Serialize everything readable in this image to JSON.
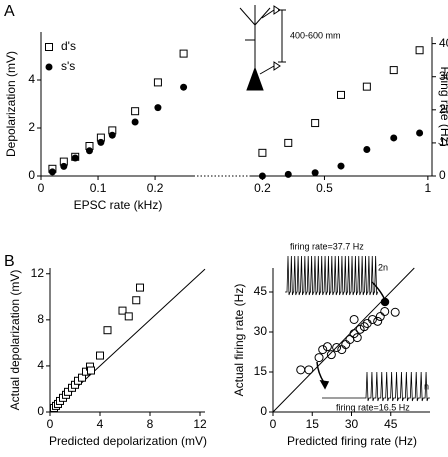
{
  "panel_labels": [
    "A",
    "B"
  ],
  "diagram": {
    "distance_label": "400-600 mm"
  },
  "traces": {
    "top_label": "firing rate=37.7 Hz",
    "top_tag": "2n",
    "bottom_label": "firing rate=16.5 Hz",
    "bottom_tag": "n"
  },
  "chart_data": [
    {
      "type": "scatter",
      "x_label": "EPSC rate (kHz)",
      "y_label": "Depolarization (mV)",
      "xlim": [
        0,
        0.27
      ],
      "ylim": [
        0,
        6
      ],
      "xticks": [
        0,
        0.1,
        0.2
      ],
      "yticks": [
        0,
        2,
        4
      ],
      "legend": "upper left",
      "series": [
        {
          "name": "d's",
          "marker": "open-square",
          "color": "#000000",
          "x": [
            0.02,
            0.04,
            0.06,
            0.085,
            0.105,
            0.125,
            0.165,
            0.205,
            0.25
          ],
          "values": [
            0.3,
            0.6,
            0.8,
            1.25,
            1.6,
            1.9,
            2.7,
            3.9,
            5.1
          ]
        },
        {
          "name": "s's",
          "marker": "filled-circle",
          "color": "#000000",
          "x": [
            0.02,
            0.04,
            0.06,
            0.085,
            0.105,
            0.125,
            0.165,
            0.205,
            0.25
          ],
          "values": [
            0.17,
            0.4,
            0.75,
            1.05,
            1.4,
            1.7,
            2.25,
            2.85,
            3.7
          ]
        }
      ]
    },
    {
      "type": "scatter",
      "y_label": "Firing rate (Hz)",
      "y_axis_side": "right",
      "xlim": [
        0.14,
        1.02
      ],
      "ylim": [
        0,
        42
      ],
      "xticks": [
        0.2,
        0.5,
        1
      ],
      "yticks": [
        0,
        10,
        20,
        30,
        40
      ],
      "series": [
        {
          "marker": "open-square",
          "color": "#000000",
          "x": [
            0.2,
            0.325,
            0.455,
            0.58,
            0.705,
            0.835,
            0.96
          ],
          "values": [
            7,
            10,
            16,
            24.5,
            27,
            32,
            38
          ]
        },
        {
          "marker": "filled-circle",
          "color": "#000000",
          "x": [
            0.2,
            0.325,
            0.455,
            0.58,
            0.705,
            0.835,
            0.96
          ],
          "values": [
            0,
            0.5,
            1,
            3,
            8,
            11.5,
            13
          ]
        }
      ]
    },
    {
      "type": "scatter",
      "x_label": "Predicted depolarization (mV)",
      "y_label": "Actual depolarization (mV)",
      "xlim": [
        0,
        12.4
      ],
      "ylim": [
        0,
        12.5
      ],
      "xticks": [
        0,
        4,
        8,
        12
      ],
      "yticks": [
        0,
        4,
        8,
        12
      ],
      "diagonal": true,
      "series": [
        {
          "marker": "open-square",
          "color": "#000000",
          "x": [
            0.32,
            0.48,
            0.64,
            0.8,
            1.04,
            1.28,
            1.44,
            1.76,
            2.0,
            2.24,
            2.56,
            2.88,
            3.2,
            3.28,
            4.0,
            4.6,
            5.8,
            6.3,
            6.9,
            7.2
          ],
          "values": [
            0.35,
            0.53,
            0.7,
            0.96,
            1.23,
            1.49,
            1.75,
            2.1,
            2.36,
            2.71,
            2.98,
            3.5,
            3.94,
            3.6,
            4.9,
            7.1,
            8.8,
            8.3,
            9.7,
            10.8
          ]
        }
      ]
    },
    {
      "type": "scatter",
      "x_label": "Predicted firing rate (Hz)",
      "y_label": "Actual firing rate (Hz)",
      "xlim": [
        0,
        60
      ],
      "ylim": [
        0,
        54
      ],
      "xticks": [
        0,
        15,
        30,
        45
      ],
      "yticks": [
        0,
        15,
        30,
        45
      ],
      "diagonal": true,
      "series": [
        {
          "marker": "open-circle",
          "color": "#000000",
          "x": [
            10.6,
            13.7,
            17.6,
            19,
            20.8,
            22.3,
            24.3,
            26.3,
            27.8,
            29.4,
            31,
            32.2,
            33.3,
            34.9,
            36,
            38,
            40,
            41,
            42.7,
            46.7,
            31
          ],
          "values": [
            15.8,
            15.8,
            20.4,
            23.4,
            24.5,
            21.5,
            24.2,
            23.4,
            25.3,
            27.2,
            29.4,
            27.9,
            31,
            32,
            33.2,
            34.7,
            34,
            35.8,
            37.7,
            37.4,
            34.7
          ]
        }
      ]
    }
  ]
}
